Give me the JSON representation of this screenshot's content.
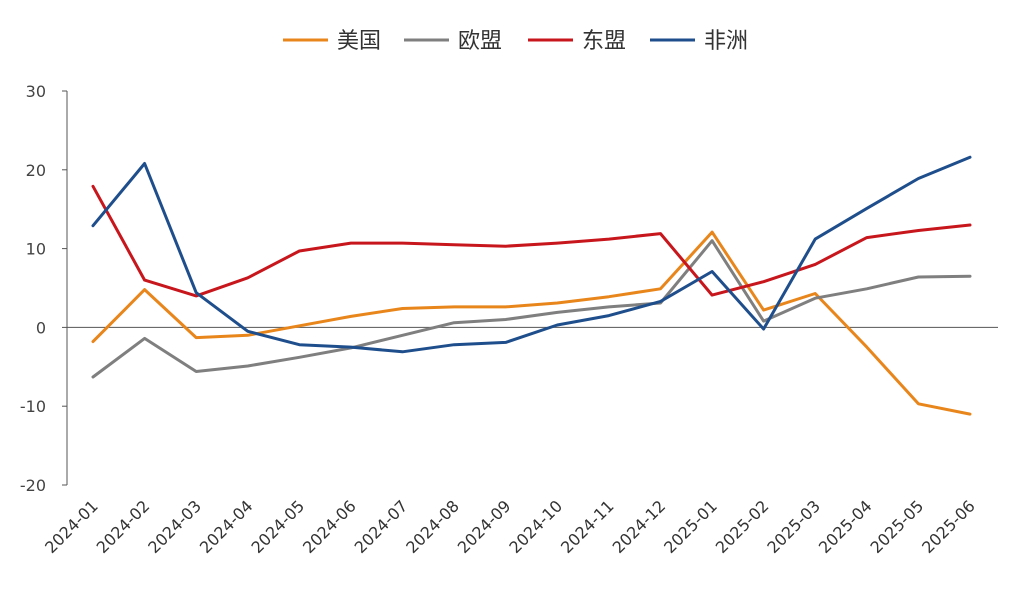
{
  "chart_data": {
    "type": "line",
    "title": "",
    "xlabel": "",
    "ylabel": "",
    "ylim": [
      -20,
      30
    ],
    "yticks": [
      30,
      20,
      10,
      0,
      -10,
      -20
    ],
    "grid": false,
    "legend_position": "top-center",
    "categories": [
      "2024-01",
      "2024-02",
      "2024-03",
      "2024-04",
      "2024-05",
      "2024-06",
      "2024-07",
      "2024-08",
      "2024-09",
      "2024-10",
      "2024-11",
      "2024-12",
      "2025-01",
      "2025-02",
      "2025-03",
      "2025-04",
      "2025-05",
      "2025-06"
    ],
    "series": [
      {
        "name": "美国",
        "color": "#E8861C",
        "values": [
          -1.8,
          4.8,
          -1.3,
          -1.0,
          0.2,
          1.4,
          2.4,
          2.6,
          2.6,
          3.1,
          3.9,
          4.9,
          12.1,
          2.2,
          4.3,
          -2.5,
          -9.7,
          -11.0
        ]
      },
      {
        "name": "欧盟",
        "color": "#7F7F7F",
        "values": [
          -6.3,
          -1.4,
          -5.6,
          -4.9,
          -3.8,
          -2.6,
          -1.0,
          0.6,
          1.0,
          1.9,
          2.6,
          3.1,
          11.0,
          0.8,
          3.7,
          4.9,
          6.4,
          6.5
        ]
      },
      {
        "name": "东盟",
        "color": "#C8161D",
        "values": [
          17.9,
          6.0,
          4.0,
          6.3,
          9.7,
          10.7,
          10.7,
          10.5,
          10.3,
          10.7,
          11.2,
          11.9,
          4.1,
          5.8,
          8.0,
          11.4,
          12.3,
          13.0
        ]
      },
      {
        "name": "非洲",
        "color": "#1F4E8C",
        "values": [
          12.9,
          20.8,
          4.4,
          -0.5,
          -2.2,
          -2.5,
          -3.1,
          -2.2,
          -1.9,
          0.3,
          1.5,
          3.3,
          7.1,
          -0.2,
          11.2,
          15.1,
          18.9,
          21.6
        ]
      }
    ]
  }
}
